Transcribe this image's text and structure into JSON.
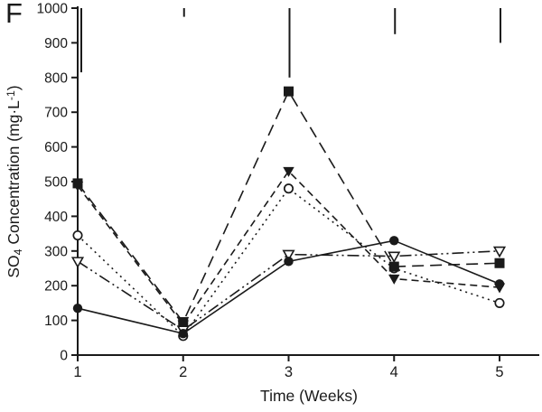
{
  "panel_label": "F",
  "ink_color": "#1a1a1a",
  "chart_data": {
    "type": "line",
    "title": "",
    "xlabel": "Time (Weeks)",
    "ylabel": {
      "base1": "SO",
      "sub": "4",
      "base2": " Concentration (mg·L",
      "sup": "-1",
      "base3": ")"
    },
    "x": [
      1,
      2,
      3,
      4,
      5
    ],
    "xticks": [
      "1",
      "2",
      "3",
      "4",
      "5"
    ],
    "yticks": [
      "0",
      "100",
      "200",
      "300",
      "400",
      "500",
      "600",
      "700",
      "800",
      "900",
      "1000"
    ],
    "xlim": [
      1,
      5.38
    ],
    "ylim": [
      0,
      1000
    ],
    "grid": false,
    "legend": "none",
    "series": [
      {
        "name": "open-circle",
        "marker": "circle-open",
        "line": "dot",
        "values": [
          345,
          55,
          480,
          250,
          150
        ]
      },
      {
        "name": "filled-triangle-down",
        "marker": "triangle-down-filled",
        "line": "dash",
        "values": [
          488,
          88,
          530,
          220,
          195
        ]
      },
      {
        "name": "filled-square",
        "marker": "square-filled",
        "line": "long-dash",
        "values": [
          495,
          95,
          760,
          255,
          265
        ]
      },
      {
        "name": "open-triangle-down",
        "marker": "triangle-down-open",
        "line": "dash-dot-dot",
        "values": [
          270,
          72,
          290,
          285,
          300
        ]
      },
      {
        "name": "filled-circle",
        "marker": "circle-filled",
        "line": "solid",
        "values": [
          135,
          62,
          270,
          330,
          205
        ]
      }
    ],
    "error_bars_top": [
      {
        "x": 1,
        "from": 1000,
        "to": 815
      },
      {
        "x": 2,
        "from": 1000,
        "to": 975
      },
      {
        "x": 3,
        "from": 1000,
        "to": 800
      },
      {
        "x": 4,
        "from": 1000,
        "to": 925
      },
      {
        "x": 5,
        "from": 1000,
        "to": 900
      }
    ]
  }
}
